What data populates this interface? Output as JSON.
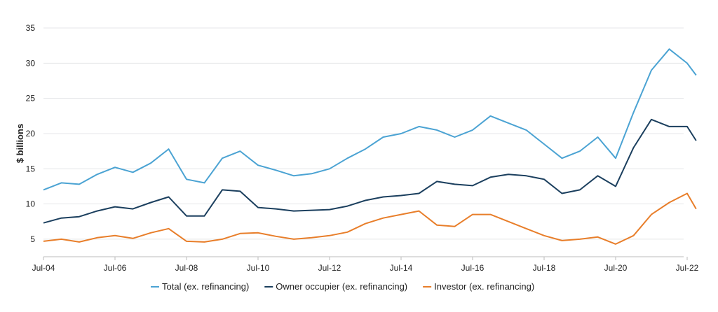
{
  "chart_data": {
    "type": "line",
    "title": "",
    "xlabel": "",
    "ylabel": "$ billions",
    "ylim": [
      2.5,
      36
    ],
    "yticks": [
      5,
      10,
      15,
      20,
      25,
      30,
      35
    ],
    "grid": true,
    "legend_position": "bottom",
    "x_start": "Jul-04",
    "x_tick_labels": [
      "Jul-04",
      "Jul-06",
      "Jul-08",
      "Jul-10",
      "Jul-12",
      "Jul-14",
      "Jul-16",
      "Jul-18",
      "Jul-20",
      "Jul-22"
    ],
    "series": [
      {
        "name": "Total (ex. refinancing)",
        "color": "#4ba3d3",
        "points": [
          [
            "Jul-04",
            12.0
          ],
          [
            "Jan-05",
            13.0
          ],
          [
            "Jul-05",
            12.8
          ],
          [
            "Jan-06",
            14.2
          ],
          [
            "Jul-06",
            15.2
          ],
          [
            "Jan-07",
            14.5
          ],
          [
            "Jul-07",
            15.8
          ],
          [
            "Jan-08",
            17.8
          ],
          [
            "Jul-08",
            13.5
          ],
          [
            "Jan-09",
            13.0
          ],
          [
            "Jul-09",
            16.5
          ],
          [
            "Jan-10",
            17.5
          ],
          [
            "Jul-10",
            15.5
          ],
          [
            "Jan-11",
            14.8
          ],
          [
            "Jul-11",
            14.0
          ],
          [
            "Jan-12",
            14.3
          ],
          [
            "Jul-12",
            15.0
          ],
          [
            "Jan-13",
            16.5
          ],
          [
            "Jul-13",
            17.8
          ],
          [
            "Jan-14",
            19.5
          ],
          [
            "Jul-14",
            20.0
          ],
          [
            "Jan-15",
            21.0
          ],
          [
            "Jul-15",
            20.5
          ],
          [
            "Jan-16",
            19.5
          ],
          [
            "Jul-16",
            20.5
          ],
          [
            "Jan-17",
            22.5
          ],
          [
            "Jul-17",
            21.5
          ],
          [
            "Jan-18",
            20.5
          ],
          [
            "Jul-18",
            18.5
          ],
          [
            "Jan-19",
            16.5
          ],
          [
            "Jul-19",
            17.5
          ],
          [
            "Jan-20",
            19.5
          ],
          [
            "Jul-20",
            16.5
          ],
          [
            "Jan-21",
            23.0
          ],
          [
            "Jul-21",
            29.0
          ],
          [
            "Jan-22",
            32.0
          ],
          [
            "Jul-22",
            30.0
          ],
          [
            "Oct-22",
            28.3
          ]
        ]
      },
      {
        "name": "Owner occupier (ex. refinancing)",
        "color": "#1b3f5e",
        "points": [
          [
            "Jul-04",
            7.3
          ],
          [
            "Jan-05",
            8.0
          ],
          [
            "Jul-05",
            8.2
          ],
          [
            "Jan-06",
            9.0
          ],
          [
            "Jul-06",
            9.6
          ],
          [
            "Jan-07",
            9.3
          ],
          [
            "Jul-07",
            10.2
          ],
          [
            "Jan-08",
            11.0
          ],
          [
            "Jul-08",
            8.3
          ],
          [
            "Jan-09",
            8.3
          ],
          [
            "Jul-09",
            12.0
          ],
          [
            "Jan-10",
            11.8
          ],
          [
            "Jul-10",
            9.5
          ],
          [
            "Jan-11",
            9.3
          ],
          [
            "Jul-11",
            9.0
          ],
          [
            "Jan-12",
            9.1
          ],
          [
            "Jul-12",
            9.2
          ],
          [
            "Jan-13",
            9.7
          ],
          [
            "Jul-13",
            10.5
          ],
          [
            "Jan-14",
            11.0
          ],
          [
            "Jul-14",
            11.2
          ],
          [
            "Jan-15",
            11.5
          ],
          [
            "Jul-15",
            13.2
          ],
          [
            "Jan-16",
            12.8
          ],
          [
            "Jul-16",
            12.6
          ],
          [
            "Jan-17",
            13.8
          ],
          [
            "Jul-17",
            14.2
          ],
          [
            "Jan-18",
            14.0
          ],
          [
            "Jul-18",
            13.5
          ],
          [
            "Jan-19",
            11.5
          ],
          [
            "Jul-19",
            12.0
          ],
          [
            "Jan-20",
            14.0
          ],
          [
            "Jul-20",
            12.5
          ],
          [
            "Jan-21",
            18.0
          ],
          [
            "Jul-21",
            22.0
          ],
          [
            "Jan-22",
            21.0
          ],
          [
            "Jul-22",
            21.0
          ],
          [
            "Oct-22",
            19.0
          ]
        ]
      },
      {
        "name": "Investor (ex. refinancing)",
        "color": "#e87e2a",
        "points": [
          [
            "Jul-04",
            4.7
          ],
          [
            "Jan-05",
            5.0
          ],
          [
            "Jul-05",
            4.6
          ],
          [
            "Jan-06",
            5.2
          ],
          [
            "Jul-06",
            5.5
          ],
          [
            "Jan-07",
            5.1
          ],
          [
            "Jul-07",
            5.9
          ],
          [
            "Jan-08",
            6.5
          ],
          [
            "Jul-08",
            4.7
          ],
          [
            "Jan-09",
            4.6
          ],
          [
            "Jul-09",
            5.0
          ],
          [
            "Jan-10",
            5.8
          ],
          [
            "Jul-10",
            5.9
          ],
          [
            "Jan-11",
            5.4
          ],
          [
            "Jul-11",
            5.0
          ],
          [
            "Jan-12",
            5.2
          ],
          [
            "Jul-12",
            5.5
          ],
          [
            "Jan-13",
            6.0
          ],
          [
            "Jul-13",
            7.2
          ],
          [
            "Jan-14",
            8.0
          ],
          [
            "Jul-14",
            8.5
          ],
          [
            "Jan-15",
            9.0
          ],
          [
            "Jul-15",
            7.0
          ],
          [
            "Jan-16",
            6.8
          ],
          [
            "Jul-16",
            8.5
          ],
          [
            "Jan-17",
            8.5
          ],
          [
            "Jul-17",
            7.5
          ],
          [
            "Jan-18",
            6.5
          ],
          [
            "Jul-18",
            5.5
          ],
          [
            "Jan-19",
            4.8
          ],
          [
            "Jul-19",
            5.0
          ],
          [
            "Jan-20",
            5.3
          ],
          [
            "Jul-20",
            4.3
          ],
          [
            "Jan-21",
            5.5
          ],
          [
            "Jul-21",
            8.5
          ],
          [
            "Jan-22",
            10.2
          ],
          [
            "Jul-22",
            11.5
          ],
          [
            "Oct-22",
            9.3
          ]
        ]
      }
    ]
  }
}
